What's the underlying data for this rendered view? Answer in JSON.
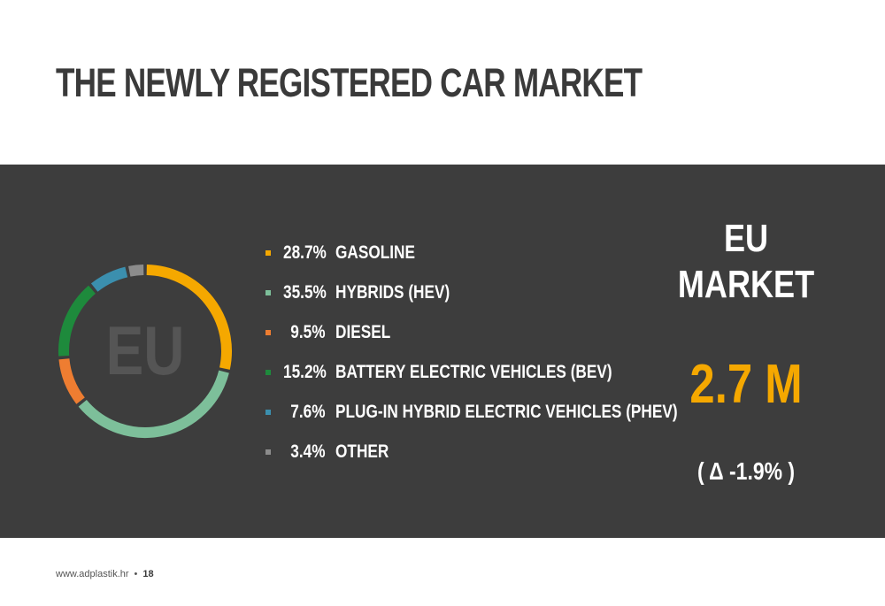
{
  "title": "THE NEWLY REGISTERED CAR MARKET",
  "market": {
    "label_line1": "EU",
    "label_line2": "MARKET",
    "value": "2.7 M",
    "change": "( Δ -1.9% )"
  },
  "chart_data": {
    "type": "pie",
    "center_label": "EU",
    "categories": [
      "GASOLINE",
      "HYBRIDS (HEV)",
      "DIESEL",
      "BATTERY ELECTRIC VEHICLES (BEV)",
      "PLUG-IN HYBRID ELECTRIC VEHICLES (PHEV)",
      "OTHER"
    ],
    "values": [
      28.7,
      35.5,
      9.5,
      15.2,
      7.6,
      3.4
    ],
    "labels": [
      "28.7%",
      "35.5%",
      "9.5%",
      "15.2%",
      "7.6%",
      "3.4%"
    ],
    "colors": [
      "#f5a800",
      "#7dbf9a",
      "#ee7d31",
      "#1e8a3c",
      "#3b8fae",
      "#8c8c8c"
    ],
    "legend_position": "right"
  },
  "footer": {
    "website": "www.adplastik.hr",
    "separator": "•",
    "page": "18"
  }
}
